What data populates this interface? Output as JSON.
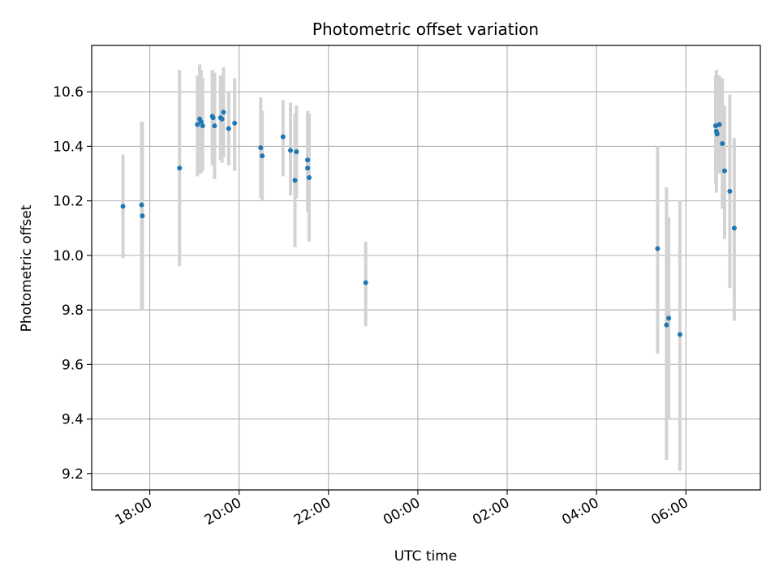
{
  "chart_data": {
    "type": "scatter",
    "title": "Photometric offset variation",
    "xlabel": "UTC time",
    "ylabel": "Photometric offset",
    "x_axis_type": "time",
    "x_range": [
      "2000-01-01T16:42",
      "2000-01-02T07:40"
    ],
    "ylim": [
      9.14,
      10.77
    ],
    "grid": true,
    "x_ticks": [
      {
        "t": "2000-01-01T18:00",
        "label": "18:00"
      },
      {
        "t": "2000-01-01T20:00",
        "label": "20:00"
      },
      {
        "t": "2000-01-01T22:00",
        "label": "22:00"
      },
      {
        "t": "2000-01-02T00:00",
        "label": "00:00"
      },
      {
        "t": "2000-01-02T02:00",
        "label": "02:00"
      },
      {
        "t": "2000-01-02T04:00",
        "label": "04:00"
      },
      {
        "t": "2000-01-02T06:00",
        "label": "06:00"
      }
    ],
    "y_ticks": [
      {
        "v": 9.2,
        "label": "9.2"
      },
      {
        "v": 9.4,
        "label": "9.4"
      },
      {
        "v": 9.6,
        "label": "9.6"
      },
      {
        "v": 9.8,
        "label": "9.8"
      },
      {
        "v": 10.0,
        "label": "10.0"
      },
      {
        "v": 10.2,
        "label": "10.2"
      },
      {
        "v": 10.4,
        "label": "10.4"
      },
      {
        "v": 10.6,
        "label": "10.6"
      }
    ],
    "point_color": "#1f77b4",
    "errorbar_color": "#d3d3d3",
    "points": [
      {
        "t": "2000-01-01T17:24",
        "y": 10.18,
        "lo": 9.99,
        "hi": 10.37
      },
      {
        "t": "2000-01-01T17:49",
        "y": 10.185,
        "lo": 9.8,
        "hi": 10.49
      },
      {
        "t": "2000-01-01T17:50",
        "y": 10.145,
        "lo": 9.8,
        "hi": 10.49
      },
      {
        "t": "2000-01-01T18:40",
        "y": 10.32,
        "lo": 9.96,
        "hi": 10.68
      },
      {
        "t": "2000-01-01T19:04",
        "y": 10.48,
        "lo": 10.29,
        "hi": 10.66
      },
      {
        "t": "2000-01-01T19:07",
        "y": 10.5,
        "lo": 10.3,
        "hi": 10.7
      },
      {
        "t": "2000-01-01T19:09",
        "y": 10.49,
        "lo": 10.3,
        "hi": 10.68
      },
      {
        "t": "2000-01-01T19:11",
        "y": 10.475,
        "lo": 10.31,
        "hi": 10.65
      },
      {
        "t": "2000-01-01T19:24",
        "y": 10.51,
        "lo": 10.33,
        "hi": 10.68
      },
      {
        "t": "2000-01-01T19:25",
        "y": 10.505,
        "lo": 10.33,
        "hi": 10.67
      },
      {
        "t": "2000-01-01T19:27",
        "y": 10.475,
        "lo": 10.28,
        "hi": 10.67
      },
      {
        "t": "2000-01-01T19:35",
        "y": 10.505,
        "lo": 10.35,
        "hi": 10.66
      },
      {
        "t": "2000-01-01T19:37",
        "y": 10.5,
        "lo": 10.34,
        "hi": 10.66
      },
      {
        "t": "2000-01-01T19:39",
        "y": 10.525,
        "lo": 10.36,
        "hi": 10.69
      },
      {
        "t": "2000-01-01T19:46",
        "y": 10.465,
        "lo": 10.33,
        "hi": 10.6
      },
      {
        "t": "2000-01-01T19:54",
        "y": 10.485,
        "lo": 10.31,
        "hi": 10.65
      },
      {
        "t": "2000-01-01T20:29",
        "y": 10.395,
        "lo": 10.21,
        "hi": 10.58
      },
      {
        "t": "2000-01-01T20:31",
        "y": 10.365,
        "lo": 10.2,
        "hi": 10.53
      },
      {
        "t": "2000-01-01T20:59",
        "y": 10.435,
        "lo": 10.29,
        "hi": 10.57
      },
      {
        "t": "2000-01-01T21:09",
        "y": 10.385,
        "lo": 10.22,
        "hi": 10.56
      },
      {
        "t": "2000-01-01T21:15",
        "y": 10.275,
        "lo": 10.03,
        "hi": 10.52
      },
      {
        "t": "2000-01-01T21:17",
        "y": 10.38,
        "lo": 10.21,
        "hi": 10.55
      },
      {
        "t": "2000-01-01T21:32",
        "y": 10.35,
        "lo": 10.16,
        "hi": 10.53
      },
      {
        "t": "2000-01-01T21:32",
        "y": 10.32,
        "lo": 10.18,
        "hi": 10.52
      },
      {
        "t": "2000-01-01T21:34",
        "y": 10.285,
        "lo": 10.05,
        "hi": 10.52
      },
      {
        "t": "2000-01-01T22:50",
        "y": 9.9,
        "lo": 9.74,
        "hi": 10.05
      },
      {
        "t": "2000-01-02T05:22",
        "y": 10.025,
        "lo": 9.64,
        "hi": 10.4
      },
      {
        "t": "2000-01-02T05:34",
        "y": 9.745,
        "lo": 9.25,
        "hi": 10.25
      },
      {
        "t": "2000-01-02T05:37",
        "y": 9.77,
        "lo": 9.4,
        "hi": 10.14
      },
      {
        "t": "2000-01-02T05:52",
        "y": 9.71,
        "lo": 9.21,
        "hi": 10.2
      },
      {
        "t": "2000-01-02T06:40",
        "y": 10.475,
        "lo": 10.26,
        "hi": 10.66
      },
      {
        "t": "2000-01-02T06:41",
        "y": 10.455,
        "lo": 10.23,
        "hi": 10.68
      },
      {
        "t": "2000-01-02T06:42",
        "y": 10.445,
        "lo": 10.3,
        "hi": 10.66
      },
      {
        "t": "2000-01-02T06:45",
        "y": 10.48,
        "lo": 10.3,
        "hi": 10.66
      },
      {
        "t": "2000-01-02T06:49",
        "y": 10.41,
        "lo": 10.17,
        "hi": 10.65
      },
      {
        "t": "2000-01-02T06:52",
        "y": 10.31,
        "lo": 10.06,
        "hi": 10.55
      },
      {
        "t": "2000-01-02T06:59",
        "y": 10.235,
        "lo": 9.88,
        "hi": 10.59
      },
      {
        "t": "2000-01-02T07:05",
        "y": 10.1,
        "lo": 9.76,
        "hi": 10.43
      }
    ]
  }
}
